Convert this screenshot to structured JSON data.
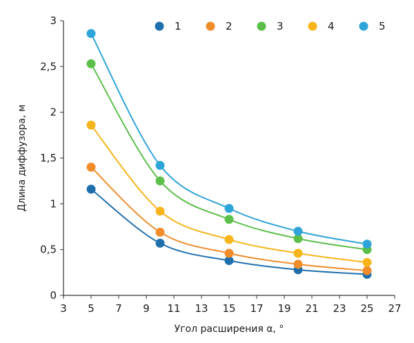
{
  "chart_data": {
    "type": "line",
    "title": "",
    "xlabel": "Угол расширения α, °",
    "ylabel": "Длина диффузора, м",
    "xlim": [
      3,
      27
    ],
    "ylim": [
      0,
      3
    ],
    "xticks": [
      "3",
      "5",
      "7",
      "9",
      "11",
      "13",
      "15",
      "17",
      "19",
      "21",
      "23",
      "25",
      "27"
    ],
    "yticks": [
      "0",
      "0,5",
      "1",
      "1,5",
      "2",
      "2,5",
      "3"
    ],
    "grid": false,
    "legend_position": "top-right",
    "x": [
      5,
      10,
      15,
      20,
      25
    ],
    "series": [
      {
        "name": "1",
        "color": "#1f6fad",
        "values": [
          1.16,
          0.57,
          0.38,
          0.28,
          0.23
        ]
      },
      {
        "name": "2",
        "color": "#f08c2a",
        "values": [
          1.4,
          0.69,
          0.46,
          0.34,
          0.27
        ]
      },
      {
        "name": "3",
        "color": "#5cbf4a",
        "values": [
          2.53,
          1.25,
          0.83,
          0.62,
          0.5
        ]
      },
      {
        "name": "4",
        "color": "#f7b51c",
        "values": [
          1.86,
          0.92,
          0.61,
          0.46,
          0.36
        ]
      },
      {
        "name": "5",
        "color": "#2fa4d8",
        "values": [
          2.86,
          1.42,
          0.95,
          0.7,
          0.56
        ]
      }
    ]
  }
}
